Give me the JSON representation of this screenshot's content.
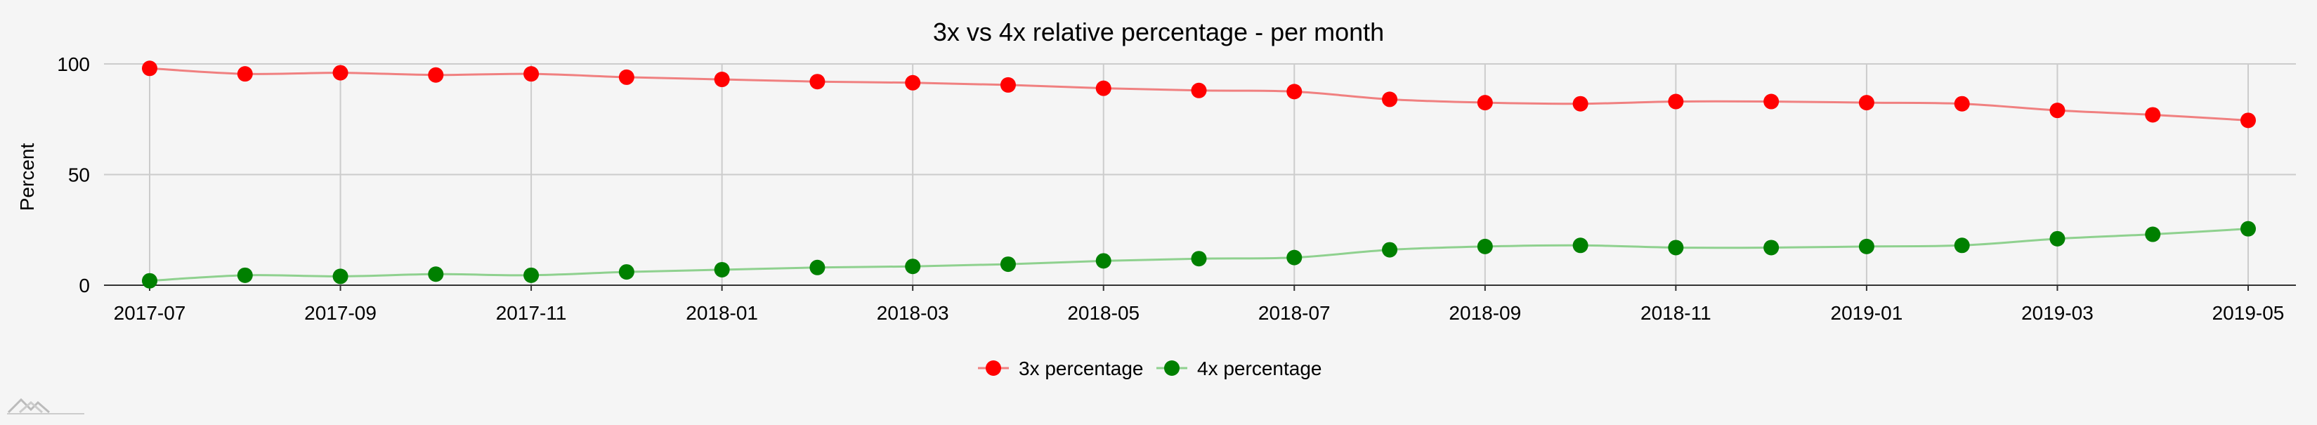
{
  "chart_data": {
    "type": "line",
    "title": "3x vs 4x relative percentage - per month",
    "xlabel": "",
    "ylabel": "Percent",
    "ylim": [
      0,
      100
    ],
    "yticks": [
      "0",
      "50",
      "100"
    ],
    "x": [
      "2017-07",
      "2017-08",
      "2017-09",
      "2017-10",
      "2017-11",
      "2017-12",
      "2018-01",
      "2018-02",
      "2018-03",
      "2018-04",
      "2018-05",
      "2018-06",
      "2018-07",
      "2018-08",
      "2018-09",
      "2018-10",
      "2018-11",
      "2018-12",
      "2019-01",
      "2019-02",
      "2019-03",
      "2019-04",
      "2019-05"
    ],
    "xtick_labels": [
      "2017-07",
      "2017-09",
      "2017-11",
      "2018-01",
      "2018-03",
      "2018-05",
      "2018-07",
      "2018-09",
      "2018-11",
      "2019-01",
      "2019-03",
      "2019-05"
    ],
    "grid": true,
    "legend_position": "bottom",
    "series": [
      {
        "name": "3x percentage",
        "color": "#ff0000",
        "line_color": "#f08080",
        "values": [
          98.0,
          95.5,
          96.0,
          95.0,
          95.5,
          94.0,
          93.0,
          92.0,
          91.5,
          90.5,
          89.0,
          88.0,
          87.5,
          84.0,
          82.5,
          82.0,
          83.0,
          83.0,
          82.5,
          82.0,
          79.0,
          77.0,
          74.5
        ]
      },
      {
        "name": "4x percentage",
        "color": "#008000",
        "line_color": "#8fd18f",
        "values": [
          2.0,
          4.5,
          4.0,
          5.0,
          4.5,
          6.0,
          7.0,
          8.0,
          8.5,
          9.5,
          11.0,
          12.0,
          12.5,
          16.0,
          17.5,
          18.0,
          17.0,
          17.0,
          17.5,
          18.0,
          21.0,
          23.0,
          25.5
        ]
      }
    ]
  }
}
